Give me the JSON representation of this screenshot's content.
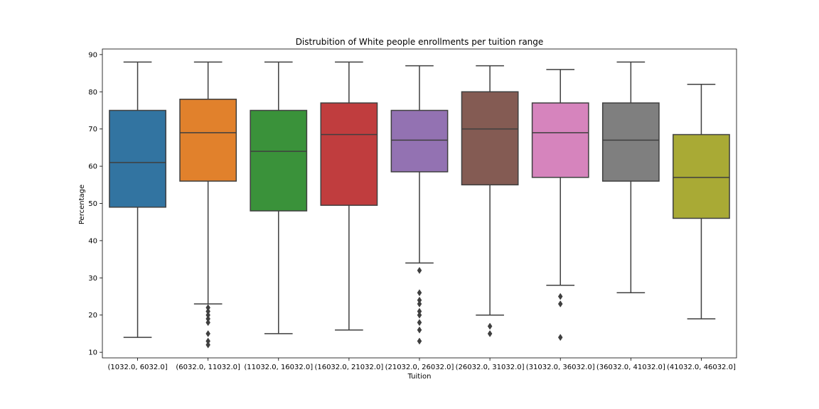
{
  "chart_data": {
    "type": "box",
    "title": "Distrubition of White people enrollments per tuition range",
    "xlabel": "Tuition",
    "ylabel": "Percentage",
    "ylim": [
      8.5,
      91.5
    ],
    "yticks": [
      10,
      20,
      30,
      40,
      50,
      60,
      70,
      80,
      90
    ],
    "grid": false,
    "categories": [
      "(1032.0, 6032.0]",
      "(6032.0, 11032.0]",
      "(11032.0, 16032.0]",
      "(16032.0, 21032.0]",
      "(21032.0, 26032.0]",
      "(26032.0, 31032.0]",
      "(31032.0, 36032.0]",
      "(36032.0, 41032.0]",
      "(41032.0, 46032.0]"
    ],
    "boxes": [
      {
        "whisker_low": 14,
        "q1": 49,
        "median": 61,
        "q3": 75,
        "whisker_high": 88,
        "outliers": [],
        "color": "#3274a1"
      },
      {
        "whisker_low": 23,
        "q1": 56,
        "median": 69,
        "q3": 78,
        "whisker_high": 88,
        "outliers": [
          22,
          21,
          20,
          19,
          18,
          15,
          13,
          12
        ],
        "color": "#e1812c"
      },
      {
        "whisker_low": 15,
        "q1": 48,
        "median": 64,
        "q3": 75,
        "whisker_high": 88,
        "outliers": [],
        "color": "#3a923a"
      },
      {
        "whisker_low": 16,
        "q1": 49.5,
        "median": 68.5,
        "q3": 77,
        "whisker_high": 88,
        "outliers": [],
        "color": "#c03d3e"
      },
      {
        "whisker_low": 34,
        "q1": 58.5,
        "median": 67,
        "q3": 75,
        "whisker_high": 87,
        "outliers": [
          32,
          26,
          24,
          23,
          21,
          20,
          18,
          16,
          13
        ],
        "color": "#9372b2"
      },
      {
        "whisker_low": 20,
        "q1": 55,
        "median": 70,
        "q3": 80,
        "whisker_high": 87,
        "outliers": [
          17,
          15
        ],
        "color": "#845b53"
      },
      {
        "whisker_low": 28,
        "q1": 57,
        "median": 69,
        "q3": 77,
        "whisker_high": 86,
        "outliers": [
          25,
          23,
          14
        ],
        "color": "#d684bd"
      },
      {
        "whisker_low": 26,
        "q1": 56,
        "median": 67,
        "q3": 77,
        "whisker_high": 88,
        "outliers": [],
        "color": "#7f7f7f"
      },
      {
        "whisker_low": 19,
        "q1": 46,
        "median": 57,
        "q3": 68.5,
        "whisker_high": 82,
        "outliers": [],
        "color": "#a9aa35"
      }
    ]
  }
}
